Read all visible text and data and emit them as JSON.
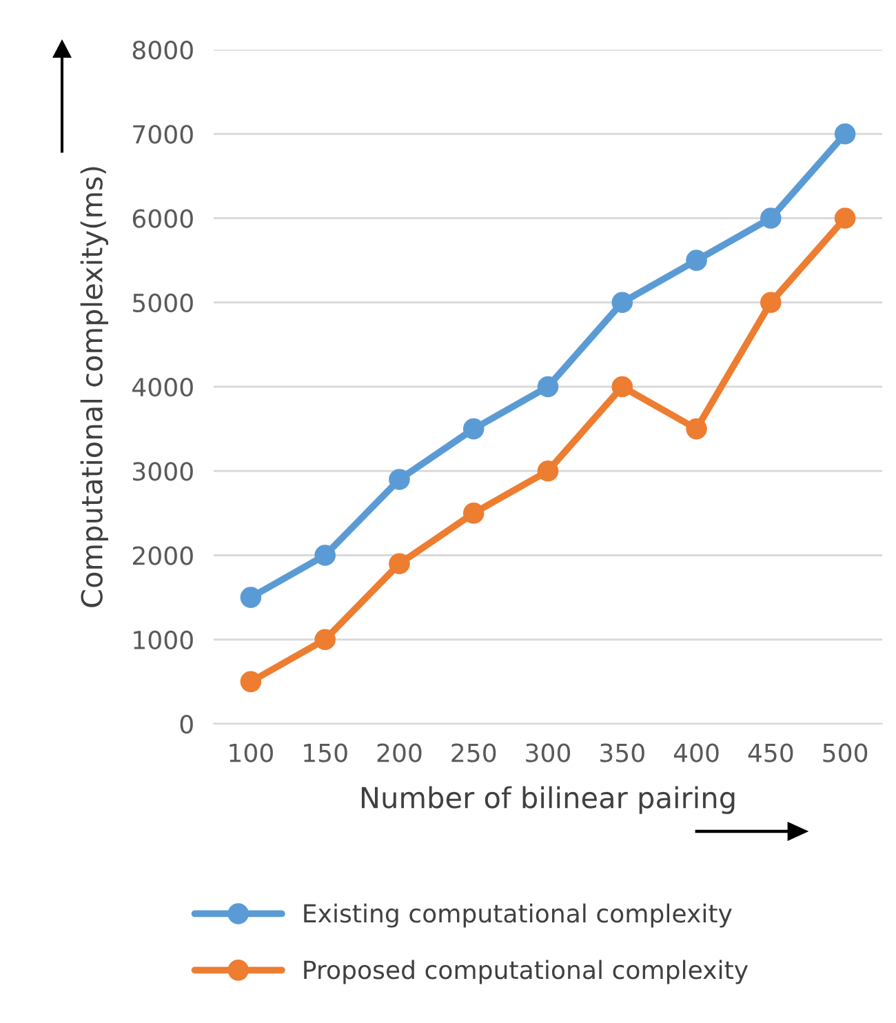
{
  "chart_data": {
    "type": "line",
    "xlabel": "Number of bilinear pairing",
    "ylabel": "Computational complexity(ms)",
    "categories": [
      "100",
      "150",
      "200",
      "250",
      "300",
      "350",
      "400",
      "450",
      "500"
    ],
    "series": [
      {
        "name": "Existing computational complexity",
        "color": "#5b9bd5",
        "values": [
          1500,
          2000,
          2900,
          3500,
          4000,
          5000,
          5500,
          6000,
          7000
        ]
      },
      {
        "name": "Proposed computational complexity",
        "color": "#ed7d31",
        "values": [
          500,
          1000,
          1900,
          2500,
          3000,
          4000,
          3500,
          5000,
          6000
        ]
      }
    ],
    "ylim": [
      0,
      8000
    ],
    "yticks": [
      0,
      1000,
      2000,
      3000,
      4000,
      5000,
      6000,
      7000,
      8000
    ],
    "grid": "y",
    "legend": "bottom",
    "marker": "circle",
    "line_style": "solid"
  }
}
